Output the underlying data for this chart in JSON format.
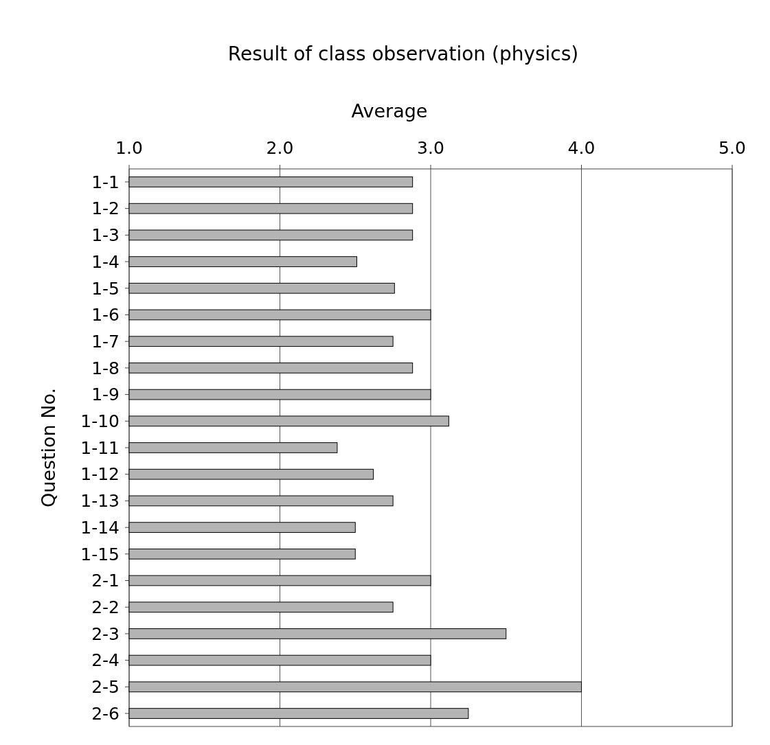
{
  "chart_data": {
    "type": "bar",
    "orientation": "horizontal",
    "title": "Result of class observation (physics)",
    "xlabel": "Average",
    "ylabel": "Question No.",
    "categories": [
      "1-1",
      "1-2",
      "1-3",
      "1-4",
      "1-5",
      "1-6",
      "1-7",
      "1-8",
      "1-9",
      "1-10",
      "1-11",
      "1-12",
      "1-13",
      "1-14",
      "1-15",
      "2-1",
      "2-2",
      "2-3",
      "2-4",
      "2-5",
      "2-6"
    ],
    "values": [
      2.88,
      2.88,
      2.88,
      2.51,
      2.76,
      3.0,
      2.75,
      2.88,
      3.0,
      3.12,
      2.38,
      2.62,
      2.75,
      2.5,
      2.5,
      3.0,
      2.75,
      3.5,
      3.0,
      4.0,
      3.25
    ],
    "color": "#b4b4b4",
    "xlim": [
      1,
      5
    ],
    "xticks": [
      {
        "value": 1,
        "label": "1.0"
      },
      {
        "value": 2,
        "label": "2.0"
      },
      {
        "value": 3,
        "label": "3.0"
      },
      {
        "value": 4,
        "label": "4.0"
      },
      {
        "value": 5,
        "label": "5.0"
      }
    ],
    "grid": "x"
  }
}
